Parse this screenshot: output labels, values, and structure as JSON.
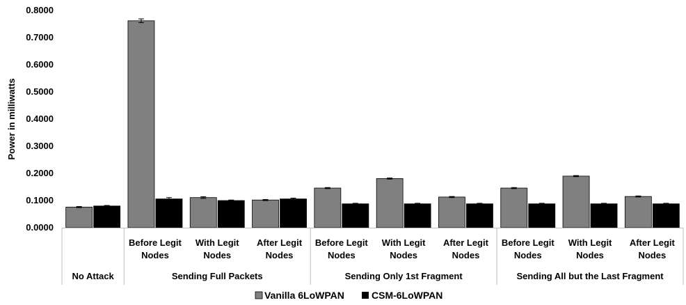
{
  "chart_data": {
    "type": "bar",
    "ylabel": "Power in milliwatts",
    "ylim": [
      0,
      0.8
    ],
    "yticks": [
      "0.0000",
      "0.1000",
      "0.2000",
      "0.3000",
      "0.4000",
      "0.5000",
      "0.6000",
      "0.7000",
      "0.8000"
    ],
    "grid": false,
    "legend_position": "bottom",
    "groups": [
      {
        "name": "No Attack",
        "categories": [
          ""
        ]
      },
      {
        "name": "Sending Full Packets",
        "categories": [
          "Before Legit Nodes",
          "With Legit Nodes",
          "After Legit Nodes"
        ]
      },
      {
        "name": "Sending Only 1st Fragment",
        "categories": [
          "Before Legit Nodes",
          "With Legit Nodes",
          "After Legit Nodes"
        ]
      },
      {
        "name": "Sending All but the Last Fragment",
        "categories": [
          "Before Legit Nodes",
          "With Legit Nodes",
          "After Legit Nodes"
        ]
      }
    ],
    "series": [
      {
        "name": "Vanilla 6LoWPAN",
        "color": "#808080",
        "values": [
          0.076,
          0.762,
          0.111,
          0.102,
          0.146,
          0.181,
          0.113,
          0.146,
          0.19,
          0.115
        ],
        "errors": [
          0.002,
          0.007,
          0.003,
          0.002,
          0.002,
          0.002,
          0.002,
          0.002,
          0.002,
          0.002
        ]
      },
      {
        "name": "CSM-6LoWPAN",
        "color": "#000000",
        "values": [
          0.08,
          0.106,
          0.1,
          0.106,
          0.088,
          0.088,
          0.088,
          0.088,
          0.088,
          0.088
        ],
        "errors": [
          0.002,
          0.005,
          0.002,
          0.003,
          0.002,
          0.002,
          0.002,
          0.002,
          0.002,
          0.002
        ]
      }
    ]
  }
}
